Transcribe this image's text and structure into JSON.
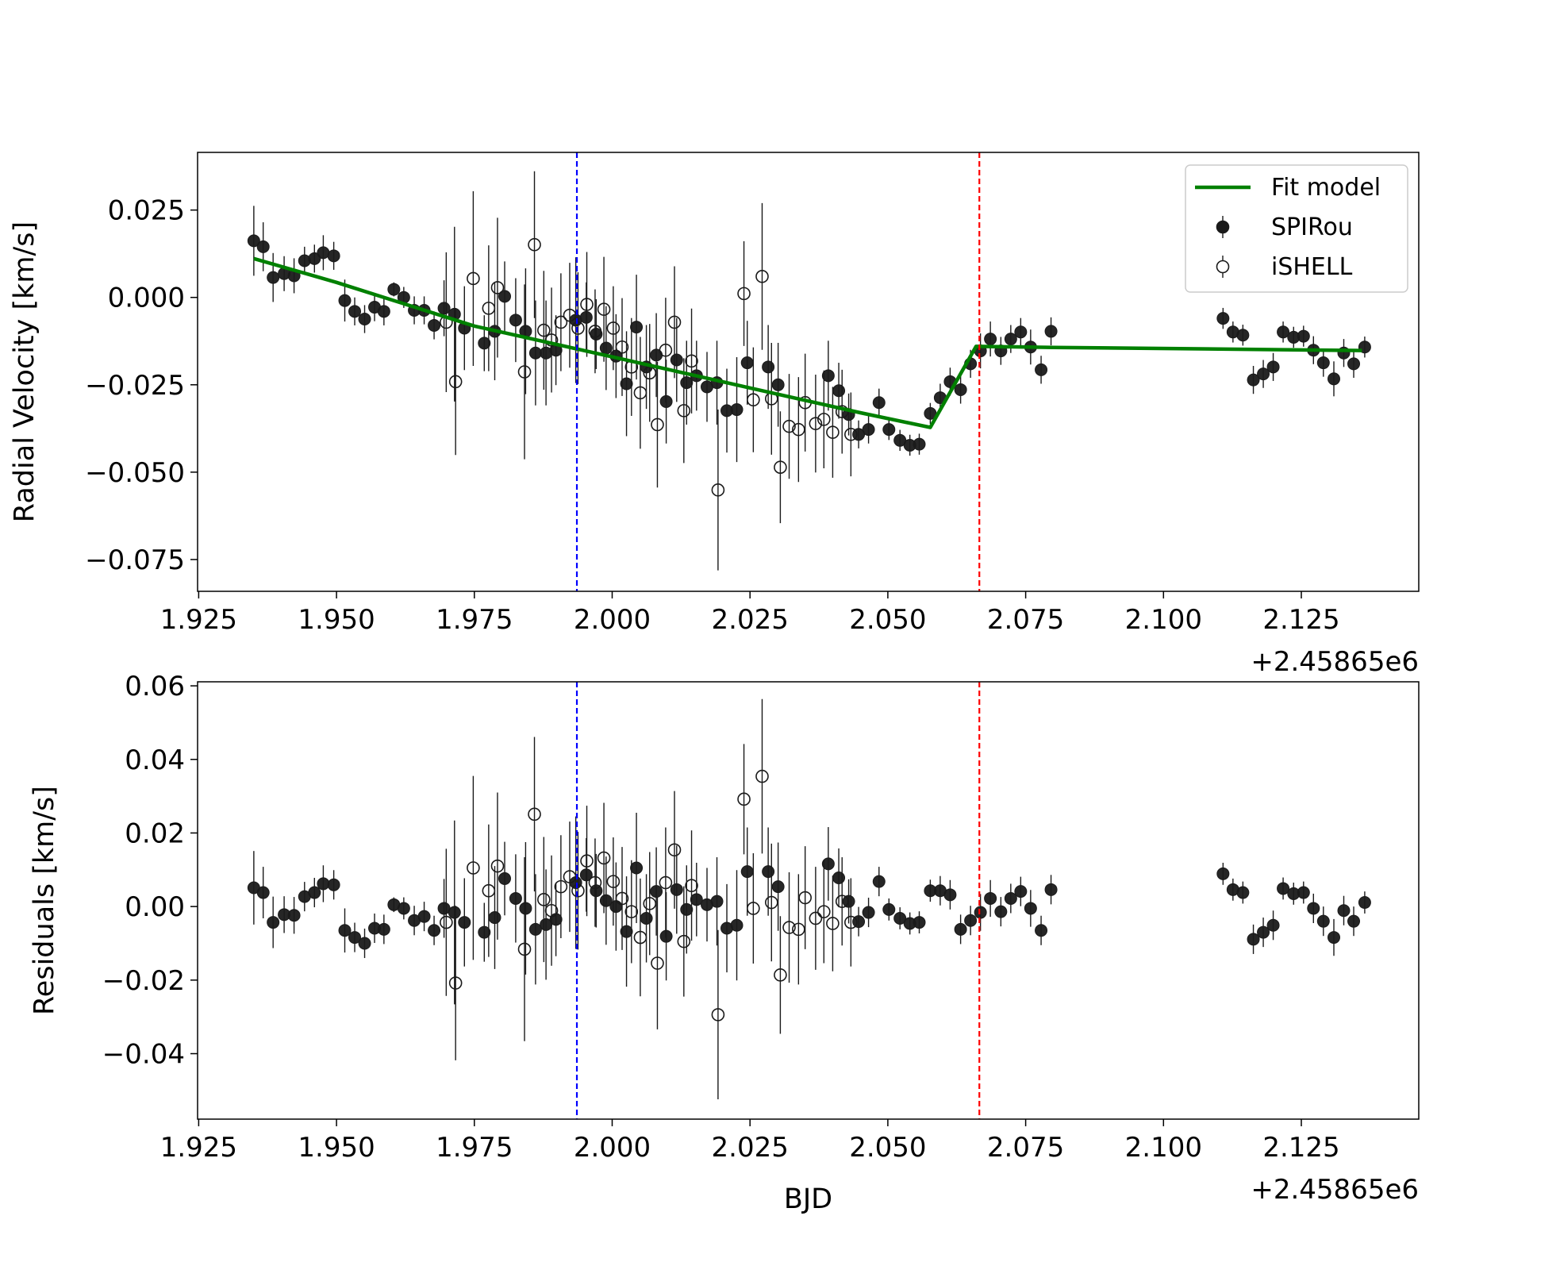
{
  "chart_data": [
    {
      "type": "errorbar",
      "y_label": "Radial Velocity [km/s]",
      "x_offset_label": "+2.45865e6",
      "xlim": [
        1.9248,
        2.1463
      ],
      "xticks": [
        1.925,
        {
          "value": 1.95,
          "label": "1.950"
        },
        1.975,
        {
          "value": 2,
          "label": "2.000"
        },
        2.025,
        {
          "value": 2.05,
          "label": "2.050"
        },
        2.075,
        {
          "value": 2.1,
          "label": "2.100"
        },
        2.125
      ],
      "ylim": [
        -0.0841,
        0.0415
      ],
      "yticks": [
        0.025,
        {
          "value": 0,
          "label": "0.000"
        },
        {
          "value": -0.025,
          "label": "−0.025"
        },
        {
          "value": -0.05,
          "label": "−0.050"
        },
        {
          "value": -0.075,
          "label": "−0.075"
        }
      ],
      "grid": false,
      "legend": "upper right",
      "vlines": [
        {
          "x": 1.9936,
          "color": "#0000ff"
        },
        {
          "x": 2.0666,
          "color": "#ff0000"
        }
      ],
      "series": [
        {
          "name": "Fit model",
          "color": "#008000",
          "style": "line",
          "x": [
            1.935,
            1.95,
            1.975,
            2.0,
            2.025,
            2.045,
            2.0577,
            2.066,
            2.08,
            2.136
          ],
          "values": [
            0.0111,
            0.0043,
            -0.0082,
            -0.017,
            -0.0259,
            -0.033,
            -0.0372,
            -0.014,
            -0.0143,
            -0.0152
          ]
        },
        {
          "name": "SPIRou",
          "color": "#1a1a1a",
          "style": "filled",
          "x": [
            1.935,
            1.9367,
            1.9385,
            1.9405,
            1.9423,
            1.9442,
            1.946,
            1.9476,
            1.9495,
            1.9515,
            1.9533,
            1.9551,
            1.9569,
            1.9586,
            1.9604,
            1.9622,
            1.9641,
            1.9659,
            1.9677,
            1.9695,
            1.9714,
            1.9732,
            1.9768,
            1.9787,
            1.9805,
            1.9825,
            1.9843,
            1.9861,
            1.988,
            1.9898,
            1.9934,
            1.9953,
            1.9971,
            1.9989,
            2.0007,
            2.0026,
            2.0044,
            2.0062,
            2.008,
            2.0098,
            2.0117,
            2.0135,
            2.0153,
            2.0172,
            2.019,
            2.0208,
            2.0226,
            2.0245,
            2.0283,
            2.0301,
            2.0392,
            2.0411,
            2.0429,
            2.0447,
            2.0465,
            2.0484,
            2.0502,
            2.0522,
            2.054,
            2.0557,
            2.0577,
            2.0595,
            2.0613,
            2.0632,
            2.065,
            2.0668,
            2.0686,
            2.0705,
            2.0723,
            2.0741,
            2.0759,
            2.0778,
            2.0796,
            2.1108,
            2.1126,
            2.1144,
            2.1163,
            2.1181,
            2.1199,
            2.1217,
            2.1236,
            2.1254,
            2.1272,
            2.129,
            2.1309,
            2.1327,
            2.1345,
            2.1365
          ],
          "values": [
            0.0162,
            0.0145,
            0.0057,
            0.0068,
            0.0062,
            0.0105,
            0.0111,
            0.0128,
            0.0119,
            -0.0009,
            -0.004,
            -0.0062,
            -0.0028,
            -0.004,
            0.0023,
            0.0,
            -0.0037,
            -0.0037,
            -0.008,
            -0.0031,
            -0.0048,
            -0.0088,
            -0.0131,
            -0.0097,
            0.0003,
            -0.0065,
            -0.0097,
            -0.0159,
            -0.0159,
            -0.0151,
            -0.0065,
            -0.0057,
            -0.0105,
            -0.0145,
            -0.0168,
            -0.0247,
            -0.0085,
            -0.0199,
            -0.0165,
            -0.0298,
            -0.0179,
            -0.0244,
            -0.0224,
            -0.0256,
            -0.0244,
            -0.0324,
            -0.0321,
            -0.0187,
            -0.0199,
            -0.025,
            -0.0224,
            -0.0267,
            -0.0335,
            -0.0392,
            -0.0378,
            -0.0301,
            -0.0378,
            -0.0409,
            -0.0423,
            -0.042,
            -0.0332,
            -0.0287,
            -0.0241,
            -0.0264,
            -0.019,
            -0.0153,
            -0.0119,
            -0.0153,
            -0.0119,
            -0.0099,
            -0.0142,
            -0.0207,
            -0.0097,
            -0.006,
            -0.0099,
            -0.0108,
            -0.0236,
            -0.0219,
            -0.0199,
            -0.0099,
            -0.0114,
            -0.0111,
            -0.0151,
            -0.0187,
            -0.0233,
            -0.0159,
            -0.019,
            -0.0142
          ],
          "errors": [
            0.01,
            0.007,
            0.007,
            0.005,
            0.005,
            0.004,
            0.004,
            0.005,
            0.004,
            0.006,
            0.004,
            0.004,
            0.004,
            0.004,
            0.002,
            0.003,
            0.004,
            0.004,
            0.004,
            0.008,
            0.025,
            0.012,
            0.008,
            0.014,
            0.01,
            0.012,
            0.018,
            0.015,
            0.015,
            0.01,
            0.018,
            0.01,
            0.01,
            0.012,
            0.012,
            0.015,
            0.015,
            0.012,
            0.012,
            0.012,
            0.012,
            0.012,
            0.01,
            0.01,
            0.012,
            0.012,
            0.015,
            0.012,
            0.012,
            0.012,
            0.01,
            0.008,
            0.006,
            0.004,
            0.004,
            0.004,
            0.003,
            0.003,
            0.003,
            0.003,
            0.003,
            0.004,
            0.004,
            0.004,
            0.004,
            0.005,
            0.005,
            0.004,
            0.004,
            0.004,
            0.005,
            0.004,
            0.004,
            0.003,
            0.003,
            0.003,
            0.004,
            0.004,
            0.004,
            0.003,
            0.003,
            0.003,
            0.004,
            0.004,
            0.005,
            0.004,
            0.004,
            0.003
          ]
        },
        {
          "name": "iSHELL",
          "color": "#1a1a1a",
          "style": "open",
          "x": [
            1.9699,
            1.9716,
            1.9748,
            1.9776,
            1.9792,
            1.9841,
            1.9859,
            1.9876,
            1.989,
            1.9907,
            1.9923,
            1.9938,
            1.9954,
            1.9969,
            1.9985,
            2.0002,
            2.0018,
            2.0035,
            2.0051,
            2.0068,
            2.0082,
            2.0097,
            2.0113,
            2.013,
            2.0144,
            2.0192,
            2.0239,
            2.0256,
            2.0272,
            2.0289,
            2.0305,
            2.0321,
            2.0338,
            2.035,
            2.0369,
            2.0384,
            2.04,
            2.0417,
            2.0433
          ],
          "values": [
            -0.0071,
            -0.0241,
            0.0054,
            -0.0031,
            0.0028,
            -0.0213,
            0.0151,
            -0.0094,
            -0.0122,
            -0.0071,
            -0.0051,
            -0.0088,
            -0.002,
            -0.0097,
            -0.0034,
            -0.0088,
            -0.0142,
            -0.0199,
            -0.0273,
            -0.0216,
            -0.0364,
            -0.0151,
            -0.0071,
            -0.0324,
            -0.0182,
            -0.0551,
            0.0011,
            -0.0293,
            0.006,
            -0.029,
            -0.0486,
            -0.0369,
            -0.0378,
            -0.0301,
            -0.0361,
            -0.0349,
            -0.0386,
            -0.0327,
            -0.0392
          ],
          "errors": [
            0.02,
            0.021,
            0.025,
            0.018,
            0.02,
            0.025,
            0.021,
            0.017,
            0.015,
            0.014,
            0.015,
            0.016,
            0.015,
            0.012,
            0.015,
            0.012,
            0.014,
            0.014,
            0.016,
            0.014,
            0.018,
            0.015,
            0.016,
            0.015,
            0.015,
            0.023,
            0.015,
            0.015,
            0.021,
            0.016,
            0.016,
            0.015,
            0.015,
            0.014,
            0.014,
            0.014,
            0.013,
            0.012,
            0.012
          ]
        }
      ]
    },
    {
      "type": "errorbar",
      "y_label": "Residuals [km/s]",
      "x_label": "BJD",
      "x_offset_label": "+2.45865e6",
      "xlim": [
        1.9248,
        2.1463
      ],
      "xticks": [
        1.925,
        {
          "value": 1.95,
          "label": "1.950"
        },
        1.975,
        {
          "value": 2,
          "label": "2.000"
        },
        2.025,
        {
          "value": 2.05,
          "label": "2.050"
        },
        2.075,
        {
          "value": 2.1,
          "label": "2.100"
        },
        2.125
      ],
      "ylim": [
        -0.0578,
        0.0611
      ],
      "yticks": [
        0.06,
        0.04,
        0.02,
        {
          "value": 0,
          "label": "0.00"
        },
        {
          "value": -0.02,
          "label": "−0.02"
        },
        {
          "value": -0.04,
          "label": "−0.04"
        }
      ],
      "grid": false,
      "vlines": [
        {
          "x": 1.9936,
          "color": "#0000ff"
        },
        {
          "x": 2.0666,
          "color": "#ff0000"
        }
      ],
      "series": [
        {
          "color": "#1a1a1a",
          "style": "filled",
          "x": [
            1.935,
            1.9367,
            1.9385,
            1.9405,
            1.9423,
            1.9442,
            1.946,
            1.9476,
            1.9495,
            1.9515,
            1.9533,
            1.9551,
            1.9569,
            1.9586,
            1.9604,
            1.9622,
            1.9641,
            1.9659,
            1.9677,
            1.9695,
            1.9714,
            1.9732,
            1.9768,
            1.9787,
            1.9805,
            1.9825,
            1.9843,
            1.9861,
            1.988,
            1.9898,
            1.9934,
            1.9953,
            1.9971,
            1.9989,
            2.0007,
            2.0026,
            2.0044,
            2.0062,
            2.008,
            2.0098,
            2.0117,
            2.0135,
            2.0153,
            2.0172,
            2.019,
            2.0208,
            2.0226,
            2.0245,
            2.0283,
            2.0301,
            2.0392,
            2.0411,
            2.0429,
            2.0447,
            2.0465,
            2.0484,
            2.0502,
            2.0522,
            2.054,
            2.0557,
            2.0577,
            2.0595,
            2.0613,
            2.0632,
            2.065,
            2.0668,
            2.0686,
            2.0705,
            2.0723,
            2.0741,
            2.0759,
            2.0778,
            2.0796,
            2.1108,
            2.1126,
            2.1144,
            2.1163,
            2.1181,
            2.1199,
            2.1217,
            2.1236,
            2.1254,
            2.1272,
            2.129,
            2.1309,
            2.1327,
            2.1345,
            2.1365
          ],
          "values": [
            0.0051,
            0.0038,
            -0.0043,
            -0.0022,
            -0.0024,
            0.0027,
            0.0038,
            0.0062,
            0.0059,
            -0.0065,
            -0.0084,
            -0.01,
            -0.0059,
            -0.0062,
            0.0005,
            -0.0005,
            -0.0038,
            -0.0027,
            -0.0065,
            -0.0005,
            -0.0016,
            -0.0043,
            -0.007,
            -0.003,
            0.0076,
            0.0022,
            -0.0005,
            -0.0062,
            -0.0049,
            -0.0035,
            0.0065,
            0.0086,
            0.0043,
            0.0016,
            0.0,
            -0.0068,
            0.0105,
            -0.0032,
            0.0041,
            -0.0081,
            0.0046,
            -0.0008,
            0.0019,
            0.0005,
            0.0014,
            -0.0059,
            -0.0051,
            0.0095,
            0.0095,
            0.0054,
            0.0116,
            0.0078,
            0.0014,
            -0.0041,
            -0.0016,
            0.0068,
            -0.0008,
            -0.0032,
            -0.0046,
            -0.0043,
            0.0043,
            0.0043,
            0.0032,
            -0.0062,
            -0.0038,
            -0.0016,
            0.0022,
            -0.0014,
            0.0022,
            0.0041,
            -0.0005,
            -0.0065,
            0.0046,
            0.0089,
            0.0046,
            0.0038,
            -0.0089,
            -0.007,
            -0.0051,
            0.0049,
            0.0035,
            0.0038,
            -0.0005,
            -0.004,
            -0.0084,
            -0.0011,
            -0.004,
            0.0011
          ],
          "errors": [
            0.01,
            0.007,
            0.007,
            0.005,
            0.005,
            0.004,
            0.004,
            0.005,
            0.004,
            0.006,
            0.004,
            0.004,
            0.004,
            0.004,
            0.002,
            0.003,
            0.004,
            0.004,
            0.004,
            0.008,
            0.025,
            0.012,
            0.008,
            0.014,
            0.01,
            0.012,
            0.018,
            0.015,
            0.015,
            0.01,
            0.018,
            0.01,
            0.01,
            0.012,
            0.012,
            0.015,
            0.015,
            0.012,
            0.012,
            0.012,
            0.012,
            0.012,
            0.01,
            0.01,
            0.012,
            0.012,
            0.015,
            0.012,
            0.012,
            0.012,
            0.01,
            0.008,
            0.006,
            0.004,
            0.004,
            0.004,
            0.003,
            0.003,
            0.003,
            0.003,
            0.003,
            0.004,
            0.004,
            0.004,
            0.004,
            0.005,
            0.005,
            0.004,
            0.004,
            0.004,
            0.005,
            0.004,
            0.004,
            0.003,
            0.003,
            0.003,
            0.004,
            0.004,
            0.004,
            0.003,
            0.003,
            0.003,
            0.004,
            0.004,
            0.005,
            0.004,
            0.004,
            0.003
          ]
        },
        {
          "color": "#1a1a1a",
          "style": "open",
          "x": [
            1.9699,
            1.9716,
            1.9748,
            1.9776,
            1.9792,
            1.9841,
            1.9859,
            1.9876,
            1.989,
            1.9907,
            1.9923,
            1.9938,
            1.9954,
            1.9969,
            1.9985,
            2.0002,
            2.0018,
            2.0035,
            2.0051,
            2.0068,
            2.0082,
            2.0097,
            2.0113,
            2.013,
            2.0144,
            2.0192,
            2.0239,
            2.0256,
            2.0272,
            2.0289,
            2.0305,
            2.0321,
            2.0338,
            2.035,
            2.0369,
            2.0384,
            2.04,
            2.0417,
            2.0433
          ],
          "values": [
            -0.0043,
            -0.0208,
            0.0105,
            0.0043,
            0.011,
            -0.0116,
            0.0251,
            0.0019,
            -0.0011,
            0.0054,
            0.0081,
            0.0043,
            0.0124,
            0.0065,
            0.0132,
            0.0068,
            0.0022,
            -0.0014,
            -0.0084,
            0.0008,
            -0.0154,
            0.0065,
            0.0154,
            -0.0095,
            0.0057,
            -0.0294,
            0.0292,
            -0.0005,
            0.0354,
            0.0011,
            -0.0186,
            -0.0057,
            -0.0062,
            0.0024,
            -0.0032,
            -0.0014,
            -0.0046,
            0.0014,
            -0.0043
          ],
          "errors": [
            0.02,
            0.021,
            0.025,
            0.018,
            0.02,
            0.025,
            0.021,
            0.017,
            0.015,
            0.014,
            0.015,
            0.016,
            0.015,
            0.012,
            0.015,
            0.012,
            0.014,
            0.014,
            0.016,
            0.014,
            0.018,
            0.015,
            0.016,
            0.015,
            0.015,
            0.023,
            0.015,
            0.015,
            0.021,
            0.016,
            0.016,
            0.015,
            0.015,
            0.014,
            0.014,
            0.014,
            0.013,
            0.012,
            0.012
          ]
        }
      ]
    }
  ]
}
